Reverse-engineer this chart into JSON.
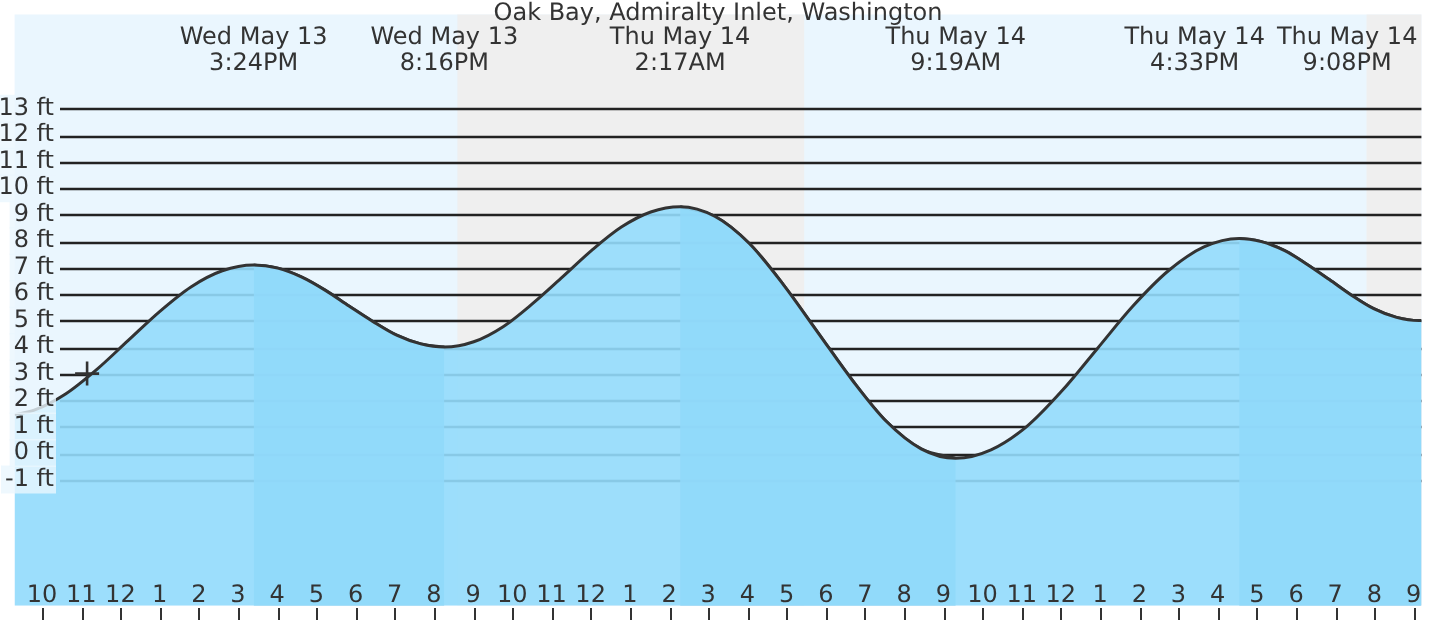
{
  "chart_data": {
    "type": "area",
    "title": "Oak Bay, Admiralty Inlet, Washington",
    "x": [
      "--05-13T09:18",
      "--05-13T09:48",
      "--05-13T10:36",
      "--05-13T11:24",
      "--05-13T12:12",
      "--05-13T13:00",
      "--05-13T13:48",
      "--05-13T14:36",
      "--05-13T15:24",
      "--05-13T16:01",
      "--05-13T16:37",
      "--05-13T17:14",
      "--05-13T17:50",
      "--05-13T18:27",
      "--05-13T19:03",
      "--05-13T19:40",
      "--05-13T20:16",
      "--05-13T21:01",
      "--05-13T21:46",
      "--05-13T22:31",
      "--05-13T23:17",
      "--05-14T00:02",
      "--05-14T00:47",
      "--05-14T01:32",
      "--05-14T02:17",
      "--05-14T03:10",
      "--05-14T04:03",
      "--05-14T04:55",
      "--05-14T05:48",
      "--05-14T06:41",
      "--05-14T07:33",
      "--05-14T08:26",
      "--05-14T09:19",
      "--05-14T10:13",
      "--05-14T11:08",
      "--05-14T12:02",
      "--05-14T12:56",
      "--05-14T13:50",
      "--05-14T14:45",
      "--05-14T15:39",
      "--05-14T16:33",
      "--05-14T17:07",
      "--05-14T17:42",
      "--05-14T18:16",
      "--05-14T18:51",
      "--05-14T19:25",
      "--05-14T19:59",
      "--05-14T20:34",
      "--05-14T21:08",
      "--05-14T21:12"
    ],
    "series": [
      {
        "color": "#70c0e6",
        "values": [
          null,
          null,
          null,
          null,
          null,
          null,
          null,
          null,
          7.1,
          6.98,
          6.65,
          6.14,
          5.55,
          4.96,
          4.45,
          4.12,
          4.0,
          null,
          null,
          null,
          null,
          null,
          null,
          null,
          9.3,
          8.94,
          7.91,
          6.36,
          4.55,
          2.74,
          1.19,
          0.16,
          -0.2,
          null,
          null,
          null,
          null,
          null,
          null,
          null,
          8.1,
          7.98,
          7.65,
          7.14,
          6.55,
          5.96,
          5.45,
          5.12,
          5.0,
          5.0
        ]
      },
      {
        "color": "#94dcfc",
        "values": [
          1.45,
          1.62,
          2.23,
          3.16,
          4.25,
          5.34,
          6.27,
          6.88,
          7.1,
          6.98,
          6.65,
          6.14,
          5.55,
          4.96,
          4.45,
          4.12,
          4.0,
          4.2,
          4.77,
          5.64,
          6.65,
          7.66,
          8.53,
          9.1,
          9.3,
          8.94,
          7.91,
          6.36,
          4.55,
          2.74,
          1.19,
          0.16,
          -0.2,
          0.12,
          1.01,
          2.36,
          3.95,
          5.54,
          6.89,
          7.78,
          8.1,
          7.98,
          7.65,
          7.14,
          6.55,
          5.96,
          5.45,
          5.12,
          5.0,
          5.0
        ]
      },
      {
        "type": "scatter",
        "marker": "cross",
        "color": "#333333",
        "x": [
          "--05-13T11:09"
        ],
        "values": [
          3.0
        ]
      }
    ],
    "annotations": [
      "Wed May 13\n3:24PM",
      "Wed May 13\n8:16PM",
      "Thu May 14\n2:17AM",
      "Thu May 14\n9:19AM",
      "Thu May 14\n4:33PM",
      "Thu May 14\n9:08PM"
    ],
    "bands": [
      {
        "axis": "x",
        "from": "--05-13T20:36",
        "to": "--05-14T05:27",
        "color": "#efefef"
      },
      {
        "axis": "x",
        "from": "--05-14T19:48",
        "to": "--05-14T21:12",
        "color": "#efefef"
      }
    ],
    "xlim": [
      "--05-13T09:18",
      "--05-14T21:12"
    ],
    "ylim": [
      -5.75,
      16.55
    ],
    "xticks": [
      {
        "value": "--05-13T10:00",
        "label": "10"
      },
      {
        "value": "--05-13T11:00",
        "label": "11"
      },
      {
        "value": "--05-13T12:00",
        "label": "12"
      },
      {
        "value": "--05-13T13:00",
        "label": "1"
      },
      {
        "value": "--05-13T14:00",
        "label": "2"
      },
      {
        "value": "--05-13T15:00",
        "label": "3"
      },
      {
        "value": "--05-13T16:00",
        "label": "4"
      },
      {
        "value": "--05-13T17:00",
        "label": "5"
      },
      {
        "value": "--05-13T18:00",
        "label": "6"
      },
      {
        "value": "--05-13T19:00",
        "label": "7"
      },
      {
        "value": "--05-13T20:00",
        "label": "8"
      },
      {
        "value": "--05-13T21:00",
        "label": "9"
      },
      {
        "value": "--05-13T22:00",
        "label": "10"
      },
      {
        "value": "--05-13T23:00",
        "label": "11"
      },
      {
        "value": "--05-14T00:00",
        "label": "12"
      },
      {
        "value": "--05-14T01:00",
        "label": "1"
      },
      {
        "value": "--05-14T02:00",
        "label": "2"
      },
      {
        "value": "--05-14T03:00",
        "label": "3"
      },
      {
        "value": "--05-14T04:00",
        "label": "4"
      },
      {
        "value": "--05-14T05:00",
        "label": "5"
      },
      {
        "value": "--05-14T06:00",
        "label": "6"
      },
      {
        "value": "--05-14T07:00",
        "label": "7"
      },
      {
        "value": "--05-14T08:00",
        "label": "8"
      },
      {
        "value": "--05-14T09:00",
        "label": "9"
      },
      {
        "value": "--05-14T10:00",
        "label": "10"
      },
      {
        "value": "--05-14T11:00",
        "label": "11"
      },
      {
        "value": "--05-14T12:00",
        "label": "12"
      },
      {
        "value": "--05-14T13:00",
        "label": "1"
      },
      {
        "value": "--05-14T14:00",
        "label": "2"
      },
      {
        "value": "--05-14T15:00",
        "label": "3"
      },
      {
        "value": "--05-14T16:00",
        "label": "4"
      },
      {
        "value": "--05-14T17:00",
        "label": "5"
      },
      {
        "value": "--05-14T18:00",
        "label": "6"
      },
      {
        "value": "--05-14T19:00",
        "label": "7"
      },
      {
        "value": "--05-14T20:00",
        "label": "8"
      },
      {
        "value": "--05-14T21:00",
        "label": "9"
      }
    ],
    "yticks": [
      {
        "value": -1,
        "label": "-1 ft"
      },
      {
        "value": 0,
        "label": "0 ft"
      },
      {
        "value": 1,
        "label": "1 ft"
      },
      {
        "value": 2,
        "label": "2 ft"
      },
      {
        "value": 3,
        "label": "3 ft"
      },
      {
        "value": 4,
        "label": "4 ft"
      },
      {
        "value": 5,
        "label": "5 ft"
      },
      {
        "value": 6,
        "label": "6 ft"
      },
      {
        "value": 7,
        "label": "7 ft"
      },
      {
        "value": 8,
        "label": "8 ft"
      },
      {
        "value": 9,
        "label": "9 ft"
      },
      {
        "value": 10,
        "label": "10 ft"
      },
      {
        "value": 11,
        "label": "11 ft"
      },
      {
        "value": 12,
        "label": "12 ft"
      },
      {
        "value": 13,
        "label": "13 ft"
      }
    ],
    "grid": "y",
    "legend": false
  }
}
